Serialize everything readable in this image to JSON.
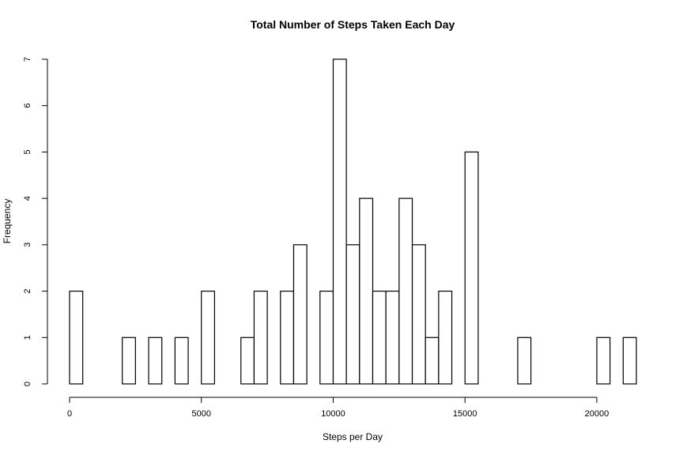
{
  "chart_data": {
    "type": "bar",
    "title": "Total Number of Steps Taken Each Day",
    "xlabel": "Steps per Day",
    "ylabel": "Frequency",
    "bin_width": 500,
    "xlim": [
      0,
      21500
    ],
    "ylim": [
      0,
      7
    ],
    "x_ticks": [
      0,
      5000,
      10000,
      15000,
      20000
    ],
    "x_tick_labels": [
      "0",
      "5000",
      "10000",
      "15000",
      "20000"
    ],
    "y_ticks": [
      0,
      1,
      2,
      3,
      4,
      5,
      6,
      7
    ],
    "y_tick_labels": [
      "0",
      "1",
      "2",
      "3",
      "4",
      "5",
      "6",
      "7"
    ],
    "bin_starts": [
      0,
      500,
      1000,
      1500,
      2000,
      2500,
      3000,
      3500,
      4000,
      4500,
      5000,
      5500,
      6000,
      6500,
      7000,
      7500,
      8000,
      8500,
      9000,
      9500,
      10000,
      10500,
      11000,
      11500,
      12000,
      12500,
      13000,
      13500,
      14000,
      14500,
      15000,
      15500,
      16000,
      16500,
      17000,
      17500,
      18000,
      18500,
      19000,
      19500,
      20000,
      20500,
      21000
    ],
    "values": [
      2,
      0,
      0,
      0,
      1,
      0,
      1,
      0,
      1,
      0,
      2,
      0,
      0,
      1,
      2,
      0,
      2,
      3,
      0,
      2,
      7,
      3,
      4,
      2,
      2,
      4,
      3,
      1,
      2,
      0,
      5,
      0,
      0,
      0,
      1,
      0,
      0,
      0,
      0,
      0,
      1,
      0,
      1
    ],
    "grid": false,
    "legend": "none",
    "colors": {
      "bar_fill": "#ffffff",
      "bar_stroke": "#000000"
    }
  }
}
